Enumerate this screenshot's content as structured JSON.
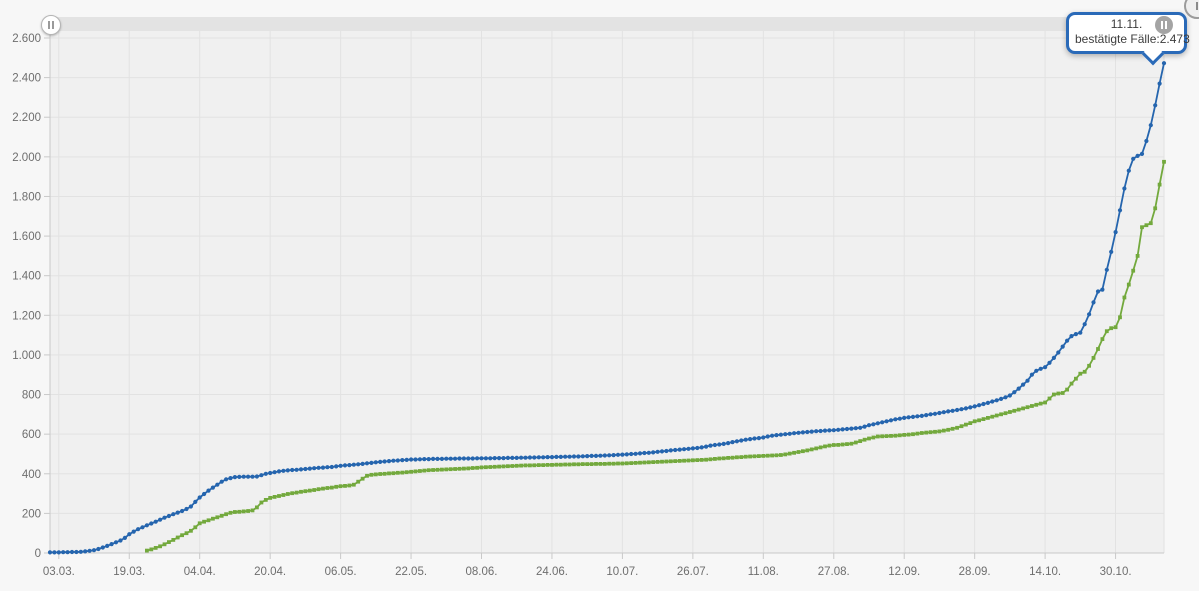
{
  "tooltip": {
    "line1": "11.11.",
    "line2": "bestätigte Fälle:2.473"
  },
  "scrollbar": {
    "left_handle_icon": "pause-icon",
    "right_handle_icon": "pause-icon"
  },
  "colors": {
    "page_background": "#f7f7f7",
    "plot_background": "#f0f0f0",
    "gridline": "#e2e2e2",
    "axis_line": "#c9c9c9",
    "tick_label": "#6e6e6e",
    "series_blue": "#2565ae",
    "series_green": "#73a93d",
    "tooltip_border": "#2a6ab8",
    "scrollbar_track": "#e3e3e3"
  },
  "chart_data": {
    "type": "line",
    "grid": true,
    "legend": "none",
    "ylim": [
      0,
      2600
    ],
    "y_tick_step": 200,
    "y_tick_labels": [
      "0",
      "200",
      "400",
      "600",
      "800",
      "1.000",
      "1.200",
      "1.400",
      "1.600",
      "1.800",
      "2.000",
      "2.200",
      "2.400",
      "2.600"
    ],
    "x_tick_labels": [
      "03.03.",
      "19.03.",
      "04.04.",
      "20.04.",
      "06.05.",
      "22.05.",
      "08.06.",
      "24.06.",
      "10.07.",
      "26.07.",
      "11.08.",
      "27.08.",
      "12.09.",
      "28.09.",
      "14.10.",
      "30.10."
    ],
    "x_tick_first_point_index": 2,
    "x_tick_point_step": 16,
    "last_point_annotation": {
      "date": "11.11.",
      "label": "bestätigte Fälle",
      "value": "2.473"
    },
    "series": [
      {
        "id": "confirmed-cases",
        "name": "bestätigte Fälle",
        "color": "#2565ae",
        "marker": "circle",
        "values": [
          3,
          3,
          3,
          4,
          4,
          5,
          5,
          6,
          8,
          11,
          14,
          20,
          28,
          36,
          45,
          54,
          63,
          76,
          95,
          108,
          120,
          130,
          140,
          149,
          158,
          168,
          178,
          187,
          196,
          204,
          212,
          222,
          235,
          258,
          280,
          298,
          315,
          330,
          345,
          360,
          372,
          378,
          383,
          384,
          385,
          385,
          385,
          386,
          393,
          400,
          404,
          408,
          412,
          415,
          417,
          419,
          420,
          422,
          424,
          426,
          428,
          430,
          431,
          433,
          434,
          437,
          440,
          442,
          444,
          446,
          448,
          450,
          453,
          455,
          458,
          460,
          462,
          464,
          466,
          467,
          469,
          470,
          472,
          472,
          473,
          474,
          474,
          475,
          475,
          475,
          476,
          476,
          476,
          477,
          477,
          477,
          477,
          478,
          478,
          478,
          478,
          479,
          479,
          479,
          480,
          480,
          480,
          481,
          481,
          482,
          482,
          483,
          483,
          484,
          484,
          485,
          485,
          486,
          486,
          487,
          487,
          488,
          489,
          490,
          490,
          491,
          492,
          493,
          494,
          496,
          497,
          498,
          500,
          501,
          503,
          505,
          506,
          508,
          511,
          513,
          515,
          518,
          520,
          522,
          524,
          526,
          528,
          530,
          533,
          537,
          542,
          545,
          548,
          551,
          555,
          560,
          564,
          568,
          572,
          575,
          578,
          580,
          583,
          588,
          592,
          595,
          597,
          600,
          602,
          605,
          607,
          609,
          611,
          613,
          615,
          616,
          618,
          619,
          620,
          622,
          624,
          626,
          628,
          630,
          632,
          638,
          645,
          650,
          655,
          660,
          665,
          670,
          675,
          678,
          682,
          685,
          687,
          690,
          692,
          696,
          700,
          703,
          707,
          711,
          715,
          718,
          722,
          726,
          730,
          735,
          740,
          746,
          752,
          758,
          765,
          771,
          778,
          786,
          795,
          812,
          830,
          850,
          870,
          900,
          920,
          930,
          938,
          960,
          985,
          1012,
          1042,
          1072,
          1095,
          1105,
          1112,
          1155,
          1205,
          1265,
          1320,
          1330,
          1430,
          1520,
          1620,
          1730,
          1840,
          1930,
          1990,
          2005,
          2015,
          2080,
          2160,
          2260,
          2370,
          2473
        ]
      },
      {
        "id": "second-series",
        "name": "",
        "color": "#73a93d",
        "marker": "square",
        "values": [
          null,
          null,
          null,
          null,
          null,
          null,
          null,
          null,
          null,
          null,
          null,
          null,
          null,
          null,
          null,
          null,
          null,
          null,
          null,
          null,
          null,
          null,
          12,
          18,
          26,
          34,
          44,
          55,
          66,
          78,
          90,
          100,
          112,
          130,
          150,
          158,
          165,
          173,
          180,
          188,
          196,
          203,
          207,
          208,
          210,
          212,
          215,
          230,
          255,
          268,
          278,
          283,
          288,
          293,
          298,
          302,
          305,
          309,
          312,
          315,
          318,
          322,
          325,
          328,
          330,
          334,
          337,
          339,
          341,
          345,
          360,
          375,
          390,
          395,
          397,
          399,
          400,
          402,
          403,
          405,
          406,
          408,
          410,
          412,
          414,
          416,
          418,
          419,
          420,
          421,
          422,
          423,
          424,
          425,
          426,
          427,
          429,
          430,
          432,
          433,
          434,
          435,
          436,
          437,
          438,
          439,
          440,
          441,
          442,
          442,
          443,
          444,
          444,
          445,
          445,
          446,
          446,
          447,
          447,
          448,
          448,
          449,
          449,
          449,
          450,
          450,
          450,
          451,
          451,
          452,
          452,
          453,
          454,
          455,
          456,
          457,
          458,
          459,
          460,
          461,
          462,
          463,
          464,
          465,
          466,
          467,
          468,
          469,
          470,
          471,
          473,
          475,
          477,
          478,
          480,
          481,
          483,
          484,
          486,
          487,
          488,
          489,
          490,
          491,
          492,
          493,
          495,
          498,
          502,
          506,
          510,
          514,
          518,
          523,
          528,
          533,
          538,
          542,
          545,
          546,
          548,
          550,
          552,
          558,
          565,
          572,
          578,
          583,
          588,
          589,
          590,
          591,
          592,
          594,
          596,
          598,
          600,
          603,
          606,
          608,
          610,
          612,
          614,
          618,
          622,
          627,
          632,
          640,
          648,
          656,
          665,
          670,
          676,
          682,
          688,
          694,
          700,
          706,
          712,
          718,
          724,
          730,
          736,
          742,
          748,
          754,
          760,
          780,
          800,
          805,
          808,
          825,
          855,
          880,
          905,
          915,
          945,
          985,
          1030,
          1080,
          1120,
          1135,
          1140,
          1190,
          1290,
          1355,
          1425,
          1500,
          1645,
          1655,
          1665,
          1740,
          1860,
          1975
        ]
      }
    ]
  }
}
